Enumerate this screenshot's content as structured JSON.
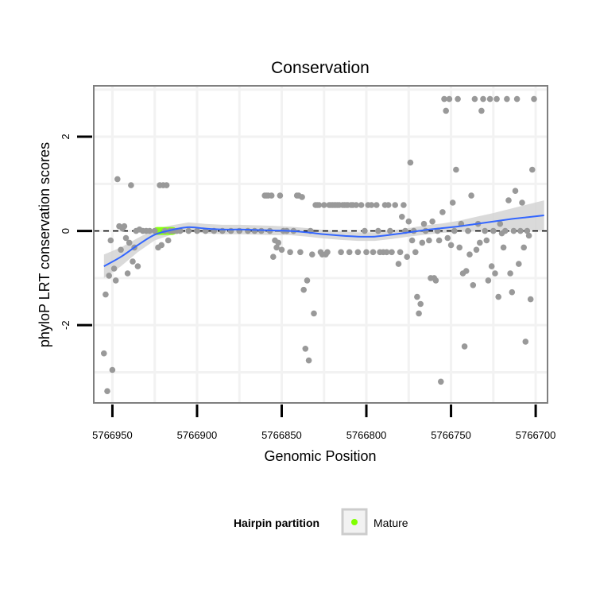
{
  "chart_data": {
    "type": "scatter",
    "title": "Conservation",
    "xlabel": "Genomic Position",
    "ylabel": "phyloP LRT conservation scores",
    "x_reversed": true,
    "xlim": [
      5766961,
      5766693
    ],
    "ylim": [
      -3.65,
      3.08
    ],
    "x_ticks": [
      5766950,
      5766900,
      5766850,
      5766800,
      5766750,
      5766700
    ],
    "x_tick_labels": [
      "5766950",
      "5766900",
      "5766850",
      "5766800",
      "5766750",
      "5766700"
    ],
    "y_ticks": [
      2,
      0,
      -2
    ],
    "y_tick_labels": [
      "2",
      "0",
      "-2"
    ],
    "grid": true,
    "reference_line": {
      "y": 0,
      "style": "dashed",
      "color": "#000000"
    },
    "colors": {
      "panel_bg": "#ffffff",
      "grid": "#f2f2f2",
      "border": "#7f7f7f",
      "points": "#999999",
      "smooth_line": "#3366ff",
      "smooth_band": "#d3d3d3",
      "mature": "#80ff00"
    },
    "legend": {
      "title": "Hairpin partition",
      "placement": "bottom",
      "entries": [
        {
          "label": "Mature",
          "color": "#80ff00"
        }
      ]
    },
    "mature_region": {
      "x_start": 5766926,
      "x_end": 5766912,
      "y": 0
    },
    "smooth": {
      "method": "loess",
      "x": [
        5766955,
        5766945,
        5766935,
        5766925,
        5766915,
        5766905,
        5766895,
        5766885,
        5766875,
        5766865,
        5766855,
        5766845,
        5766835,
        5766825,
        5766815,
        5766805,
        5766795,
        5766785,
        5766775,
        5766765,
        5766755,
        5766745,
        5766735,
        5766725,
        5766715,
        5766705,
        5766695
      ],
      "y": [
        -0.75,
        -0.55,
        -0.3,
        -0.08,
        0.02,
        0.08,
        0.05,
        0.03,
        0.03,
        0.02,
        0.01,
        0.0,
        -0.03,
        -0.07,
        -0.1,
        -0.12,
        -0.12,
        -0.08,
        -0.03,
        0.02,
        0.06,
        0.1,
        0.15,
        0.2,
        0.25,
        0.29,
        0.33
      ],
      "ci_halfwidth": [
        0.25,
        0.2,
        0.15,
        0.12,
        0.1,
        0.1,
        0.1,
        0.1,
        0.1,
        0.1,
        0.1,
        0.09,
        0.09,
        0.09,
        0.09,
        0.09,
        0.09,
        0.09,
        0.09,
        0.1,
        0.1,
        0.12,
        0.15,
        0.18,
        0.22,
        0.27,
        0.32
      ]
    },
    "points": [
      {
        "x": 5766955,
        "y": -2.6
      },
      {
        "x": 5766954,
        "y": -1.35
      },
      {
        "x": 5766953,
        "y": -3.4
      },
      {
        "x": 5766952,
        "y": -0.95
      },
      {
        "x": 5766951,
        "y": -0.2
      },
      {
        "x": 5766950,
        "y": -2.95
      },
      {
        "x": 5766949,
        "y": -0.8
      },
      {
        "x": 5766948,
        "y": -1.05
      },
      {
        "x": 5766947,
        "y": 1.1
      },
      {
        "x": 5766946,
        "y": 0.1
      },
      {
        "x": 5766945,
        "y": -0.4
      },
      {
        "x": 5766944,
        "y": 0.05
      },
      {
        "x": 5766943,
        "y": 0.1
      },
      {
        "x": 5766942,
        "y": -0.15
      },
      {
        "x": 5766941,
        "y": -0.9
      },
      {
        "x": 5766940,
        "y": -0.25
      },
      {
        "x": 5766939,
        "y": 0.97
      },
      {
        "x": 5766938,
        "y": -0.65
      },
      {
        "x": 5766937,
        "y": -0.35
      },
      {
        "x": 5766936,
        "y": 0.0
      },
      {
        "x": 5766935,
        "y": -0.75
      },
      {
        "x": 5766934,
        "y": 0.03
      },
      {
        "x": 5766932,
        "y": 0.0
      },
      {
        "x": 5766930,
        "y": 0.0
      },
      {
        "x": 5766928,
        "y": 0.0
      },
      {
        "x": 5766925,
        "y": 0.0
      },
      {
        "x": 5766923,
        "y": -0.35
      },
      {
        "x": 5766922,
        "y": 0.97
      },
      {
        "x": 5766921,
        "y": -0.3
      },
      {
        "x": 5766920,
        "y": 0.97
      },
      {
        "x": 5766919,
        "y": 0.0
      },
      {
        "x": 5766918,
        "y": 0.97
      },
      {
        "x": 5766917,
        "y": -0.2
      },
      {
        "x": 5766916,
        "y": 0.0
      },
      {
        "x": 5766914,
        "y": 0.0
      },
      {
        "x": 5766912,
        "y": 0.0
      },
      {
        "x": 5766910,
        "y": 0.0
      },
      {
        "x": 5766905,
        "y": 0.0
      },
      {
        "x": 5766900,
        "y": 0.0
      },
      {
        "x": 5766895,
        "y": 0.0
      },
      {
        "x": 5766890,
        "y": 0.0
      },
      {
        "x": 5766885,
        "y": 0.0
      },
      {
        "x": 5766880,
        "y": 0.0
      },
      {
        "x": 5766875,
        "y": 0.0
      },
      {
        "x": 5766870,
        "y": 0.0
      },
      {
        "x": 5766866,
        "y": 0.0
      },
      {
        "x": 5766862,
        "y": 0.0
      },
      {
        "x": 5766860,
        "y": 0.75
      },
      {
        "x": 5766859,
        "y": 0.75
      },
      {
        "x": 5766858,
        "y": 0.75
      },
      {
        "x": 5766857,
        "y": 0.0
      },
      {
        "x": 5766856,
        "y": 0.75
      },
      {
        "x": 5766855,
        "y": -0.55
      },
      {
        "x": 5766854,
        "y": -0.2
      },
      {
        "x": 5766853,
        "y": -0.35
      },
      {
        "x": 5766852,
        "y": -0.25
      },
      {
        "x": 5766851,
        "y": 0.75
      },
      {
        "x": 5766850,
        "y": -0.4
      },
      {
        "x": 5766849,
        "y": 0.0
      },
      {
        "x": 5766847,
        "y": 0.0
      },
      {
        "x": 5766845,
        "y": -0.45
      },
      {
        "x": 5766843,
        "y": 0.0
      },
      {
        "x": 5766841,
        "y": 0.75
      },
      {
        "x": 5766840,
        "y": 0.75
      },
      {
        "x": 5766839,
        "y": -0.45
      },
      {
        "x": 5766838,
        "y": 0.72
      },
      {
        "x": 5766837,
        "y": -1.25
      },
      {
        "x": 5766836,
        "y": -2.5
      },
      {
        "x": 5766835,
        "y": -1.05
      },
      {
        "x": 5766834,
        "y": -2.75
      },
      {
        "x": 5766833,
        "y": 0.0
      },
      {
        "x": 5766832,
        "y": -0.5
      },
      {
        "x": 5766831,
        "y": -1.75
      },
      {
        "x": 5766830,
        "y": 0.55
      },
      {
        "x": 5766829,
        "y": 0.55
      },
      {
        "x": 5766828,
        "y": 0.55
      },
      {
        "x": 5766827,
        "y": -0.45
      },
      {
        "x": 5766826,
        "y": -0.5
      },
      {
        "x": 5766825,
        "y": 0.55
      },
      {
        "x": 5766824,
        "y": -0.5
      },
      {
        "x": 5766823,
        "y": -0.45
      },
      {
        "x": 5766822,
        "y": 0.55
      },
      {
        "x": 5766821,
        "y": 0.55
      },
      {
        "x": 5766820,
        "y": 0.55
      },
      {
        "x": 5766819,
        "y": 0.55
      },
      {
        "x": 5766818,
        "y": 0.55
      },
      {
        "x": 5766817,
        "y": 0.55
      },
      {
        "x": 5766816,
        "y": 0.55
      },
      {
        "x": 5766815,
        "y": -0.45
      },
      {
        "x": 5766814,
        "y": 0.55
      },
      {
        "x": 5766813,
        "y": 0.55
      },
      {
        "x": 5766812,
        "y": 0.55
      },
      {
        "x": 5766811,
        "y": 0.55
      },
      {
        "x": 5766810,
        "y": -0.45
      },
      {
        "x": 5766809,
        "y": 0.55
      },
      {
        "x": 5766808,
        "y": 0.55
      },
      {
        "x": 5766806,
        "y": 0.55
      },
      {
        "x": 5766805,
        "y": -0.45
      },
      {
        "x": 5766803,
        "y": 0.55
      },
      {
        "x": 5766801,
        "y": 0.0
      },
      {
        "x": 5766800,
        "y": -0.45
      },
      {
        "x": 5766799,
        "y": 0.55
      },
      {
        "x": 5766797,
        "y": 0.55
      },
      {
        "x": 5766796,
        "y": -0.45
      },
      {
        "x": 5766794,
        "y": 0.55
      },
      {
        "x": 5766793,
        "y": 0.0
      },
      {
        "x": 5766792,
        "y": -0.45
      },
      {
        "x": 5766790,
        "y": -0.45
      },
      {
        "x": 5766789,
        "y": 0.55
      },
      {
        "x": 5766788,
        "y": -0.45
      },
      {
        "x": 5766787,
        "y": 0.55
      },
      {
        "x": 5766786,
        "y": 0.0
      },
      {
        "x": 5766785,
        "y": -0.45
      },
      {
        "x": 5766783,
        "y": 0.55
      },
      {
        "x": 5766781,
        "y": -0.7
      },
      {
        "x": 5766780,
        "y": -0.45
      },
      {
        "x": 5766779,
        "y": 0.3
      },
      {
        "x": 5766778,
        "y": 0.55
      },
      {
        "x": 5766777,
        "y": 0.0
      },
      {
        "x": 5766776,
        "y": -0.55
      },
      {
        "x": 5766775,
        "y": 0.2
      },
      {
        "x": 5766774,
        "y": 1.45
      },
      {
        "x": 5766773,
        "y": -0.2
      },
      {
        "x": 5766772,
        "y": 0.0
      },
      {
        "x": 5766771,
        "y": -0.45
      },
      {
        "x": 5766770,
        "y": -1.4
      },
      {
        "x": 5766769,
        "y": -1.75
      },
      {
        "x": 5766768,
        "y": -1.55
      },
      {
        "x": 5766767,
        "y": -0.25
      },
      {
        "x": 5766766,
        "y": 0.15
      },
      {
        "x": 5766765,
        "y": 0.0
      },
      {
        "x": 5766763,
        "y": -0.2
      },
      {
        "x": 5766762,
        "y": -1.0
      },
      {
        "x": 5766761,
        "y": 0.2
      },
      {
        "x": 5766760,
        "y": -1.0
      },
      {
        "x": 5766759,
        "y": -1.05
      },
      {
        "x": 5766758,
        "y": 0.0
      },
      {
        "x": 5766757,
        "y": -0.2
      },
      {
        "x": 5766756,
        "y": -3.2
      },
      {
        "x": 5766755,
        "y": 0.4
      },
      {
        "x": 5766754,
        "y": 2.8
      },
      {
        "x": 5766753,
        "y": 2.55
      },
      {
        "x": 5766752,
        "y": -0.15
      },
      {
        "x": 5766751,
        "y": 2.8
      },
      {
        "x": 5766750,
        "y": -0.3
      },
      {
        "x": 5766749,
        "y": 0.6
      },
      {
        "x": 5766748,
        "y": 0.0
      },
      {
        "x": 5766747,
        "y": 1.3
      },
      {
        "x": 5766746,
        "y": 2.8
      },
      {
        "x": 5766745,
        "y": -0.35
      },
      {
        "x": 5766744,
        "y": 0.15
      },
      {
        "x": 5766743,
        "y": -0.9
      },
      {
        "x": 5766742,
        "y": -2.45
      },
      {
        "x": 5766741,
        "y": -0.85
      },
      {
        "x": 5766740,
        "y": 0.0
      },
      {
        "x": 5766739,
        "y": -0.5
      },
      {
        "x": 5766738,
        "y": 0.75
      },
      {
        "x": 5766737,
        "y": -1.15
      },
      {
        "x": 5766736,
        "y": 2.8
      },
      {
        "x": 5766735,
        "y": -0.4
      },
      {
        "x": 5766734,
        "y": 0.15
      },
      {
        "x": 5766733,
        "y": -0.25
      },
      {
        "x": 5766732,
        "y": 2.55
      },
      {
        "x": 5766731,
        "y": 2.8
      },
      {
        "x": 5766730,
        "y": 0.0
      },
      {
        "x": 5766729,
        "y": -0.2
      },
      {
        "x": 5766728,
        "y": -1.05
      },
      {
        "x": 5766727,
        "y": 2.8
      },
      {
        "x": 5766726,
        "y": -0.75
      },
      {
        "x": 5766725,
        "y": 0.0
      },
      {
        "x": 5766724,
        "y": -0.9
      },
      {
        "x": 5766723,
        "y": 2.8
      },
      {
        "x": 5766722,
        "y": -1.4
      },
      {
        "x": 5766721,
        "y": 0.15
      },
      {
        "x": 5766720,
        "y": -0.05
      },
      {
        "x": 5766719,
        "y": -0.35
      },
      {
        "x": 5766718,
        "y": 0.0
      },
      {
        "x": 5766717,
        "y": 2.8
      },
      {
        "x": 5766716,
        "y": 0.65
      },
      {
        "x": 5766715,
        "y": -0.9
      },
      {
        "x": 5766714,
        "y": -1.3
      },
      {
        "x": 5766713,
        "y": 0.0
      },
      {
        "x": 5766712,
        "y": 0.85
      },
      {
        "x": 5766711,
        "y": 2.8
      },
      {
        "x": 5766710,
        "y": -0.7
      },
      {
        "x": 5766709,
        "y": 0.0
      },
      {
        "x": 5766708,
        "y": 0.6
      },
      {
        "x": 5766707,
        "y": -0.35
      },
      {
        "x": 5766706,
        "y": -2.35
      },
      {
        "x": 5766705,
        "y": 0.0
      },
      {
        "x": 5766704,
        "y": -0.1
      },
      {
        "x": 5766703,
        "y": -1.45
      },
      {
        "x": 5766702,
        "y": 1.3
      },
      {
        "x": 5766701,
        "y": 2.8
      }
    ]
  }
}
